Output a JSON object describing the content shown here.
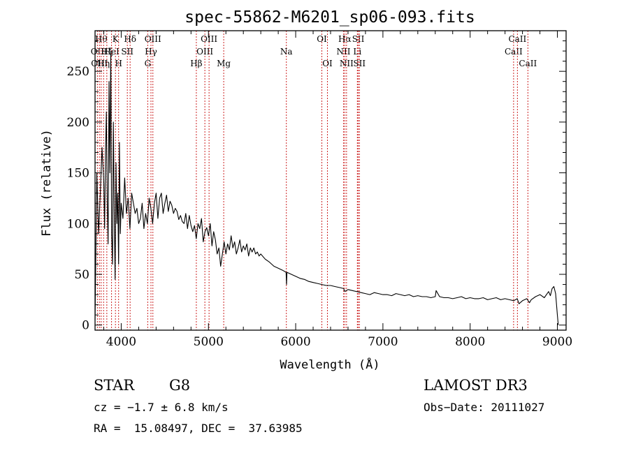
{
  "chart_data": {
    "type": "line",
    "title": "spec-55862-M6201_sp06-093.fits",
    "xlabel": "Wavelength (Å)",
    "ylabel": "Flux (relative)",
    "xlim": [
      3700,
      9100
    ],
    "ylim": [
      -5,
      290
    ],
    "x_ticks": [
      4000,
      5000,
      6000,
      7000,
      8000,
      9000
    ],
    "y_ticks": [
      0,
      50,
      100,
      150,
      200,
      250
    ],
    "colors": {
      "spectrum": "#000000",
      "line_markers": "#cc2222"
    },
    "series": [
      {
        "name": "spectrum",
        "x": [
          3700,
          3720,
          3740,
          3760,
          3780,
          3800,
          3810,
          3820,
          3830,
          3840,
          3850,
          3860,
          3870,
          3880,
          3890,
          3900,
          3910,
          3920,
          3930,
          3940,
          3950,
          3960,
          3970,
          3980,
          3990,
          4000,
          4020,
          4040,
          4060,
          4080,
          4100,
          4120,
          4140,
          4160,
          4180,
          4200,
          4220,
          4240,
          4260,
          4280,
          4300,
          4320,
          4340,
          4360,
          4380,
          4400,
          4420,
          4440,
          4460,
          4480,
          4500,
          4520,
          4540,
          4560,
          4580,
          4600,
          4620,
          4640,
          4660,
          4680,
          4700,
          4720,
          4740,
          4760,
          4780,
          4800,
          4820,
          4840,
          4860,
          4880,
          4900,
          4920,
          4940,
          4960,
          4980,
          5000,
          5020,
          5040,
          5060,
          5080,
          5100,
          5120,
          5140,
          5160,
          5180,
          5200,
          5220,
          5240,
          5260,
          5280,
          5300,
          5320,
          5340,
          5360,
          5380,
          5400,
          5420,
          5440,
          5460,
          5480,
          5500,
          5520,
          5540,
          5560,
          5580,
          5600,
          5650,
          5700,
          5750,
          5800,
          5850,
          5890,
          5895,
          5900,
          5950,
          6000,
          6050,
          6100,
          6150,
          6200,
          6250,
          6300,
          6350,
          6400,
          6450,
          6500,
          6550,
          6563,
          6600,
          6650,
          6700,
          6750,
          6800,
          6850,
          6900,
          6950,
          7000,
          7050,
          7100,
          7150,
          7200,
          7250,
          7300,
          7350,
          7400,
          7450,
          7500,
          7550,
          7600,
          7610,
          7650,
          7700,
          7750,
          7800,
          7850,
          7900,
          7950,
          8000,
          8050,
          8100,
          8150,
          8200,
          8250,
          8300,
          8350,
          8400,
          8450,
          8500,
          8540,
          8560,
          8600,
          8650,
          8680,
          8700,
          8750,
          8800,
          8850,
          8900,
          8920,
          8940,
          8960,
          8980,
          9000,
          9010
        ],
        "y": [
          5,
          150,
          90,
          130,
          175,
          140,
          95,
          170,
          210,
          120,
          80,
          240,
          150,
          270,
          90,
          60,
          200,
          110,
          45,
          160,
          100,
          130,
          60,
          180,
          90,
          120,
          105,
          145,
          110,
          125,
          95,
          130,
          120,
          110,
          115,
          100,
          105,
          120,
          95,
          110,
          100,
          125,
          115,
          100,
          120,
          130,
          105,
          125,
          130,
          110,
          120,
          128,
          112,
          122,
          118,
          110,
          115,
          112,
          104,
          108,
          102,
          100,
          110,
          95,
          108,
          98,
          92,
          98,
          85,
          100,
          95,
          105,
          82,
          92,
          96,
          88,
          100,
          78,
          92,
          84,
          70,
          76,
          58,
          70,
          82,
          70,
          80,
          74,
          88,
          76,
          82,
          70,
          76,
          84,
          72,
          78,
          74,
          80,
          68,
          76,
          72,
          76,
          70,
          72,
          68,
          70,
          65,
          62,
          58,
          56,
          54,
          52,
          40,
          52,
          50,
          48,
          46,
          45,
          43,
          42,
          41,
          40,
          39,
          39,
          38,
          37,
          36,
          33,
          35,
          34,
          33,
          32,
          31,
          30,
          32,
          31,
          30,
          30,
          29,
          31,
          30,
          29,
          30,
          28,
          29,
          28,
          28,
          27,
          28,
          34,
          28,
          27,
          27,
          26,
          27,
          28,
          26,
          27,
          26,
          26,
          27,
          25,
          26,
          27,
          25,
          26,
          25,
          24,
          26,
          21,
          24,
          26,
          22,
          25,
          28,
          30,
          27,
          33,
          29,
          36,
          38,
          31,
          10,
          0
        ]
      }
    ],
    "line_markers": [
      {
        "x": 3727,
        "label": "OII",
        "row": 1
      },
      {
        "x": 3750,
        "label": "OIII",
        "row": 2
      },
      {
        "x": 3770,
        "label": "Hθ",
        "row": 0
      },
      {
        "x": 3798,
        "label": "Hη",
        "row": 2
      },
      {
        "x": 3835,
        "label": "Hζ",
        "row": 1
      },
      {
        "x": 3889,
        "label": "HeI",
        "row": 1
      },
      {
        "x": 3934,
        "label": "K",
        "row": 0
      },
      {
        "x": 3970,
        "label": "H",
        "row": 2
      },
      {
        "x": 4070,
        "label": "SII",
        "row": 1
      },
      {
        "x": 4102,
        "label": "Hδ",
        "row": 0
      },
      {
        "x": 4304,
        "label": "G",
        "row": 2
      },
      {
        "x": 4341,
        "label": "Hγ",
        "row": 1
      },
      {
        "x": 4363,
        "label": "OIII",
        "row": 0
      },
      {
        "x": 4861,
        "label": "Hβ",
        "row": 2
      },
      {
        "x": 4959,
        "label": "OIII",
        "row": 1
      },
      {
        "x": 5007,
        "label": "OIII",
        "row": 0
      },
      {
        "x": 5175,
        "label": "Mg",
        "row": 2
      },
      {
        "x": 5893,
        "label": "Na",
        "row": 1
      },
      {
        "x": 6300,
        "label": "OI",
        "row": 0
      },
      {
        "x": 6364,
        "label": "OI",
        "row": 2
      },
      {
        "x": 6548,
        "label": "NII",
        "row": 1
      },
      {
        "x": 6563,
        "label": "Hα",
        "row": 0
      },
      {
        "x": 6583,
        "label": "NII",
        "row": 2
      },
      {
        "x": 6707,
        "label": "Li",
        "row": 1
      },
      {
        "x": 6717,
        "label": "SII",
        "row": 0
      },
      {
        "x": 6731,
        "label": "SII",
        "row": 2
      },
      {
        "x": 8498,
        "label": "CaII",
        "row": 1
      },
      {
        "x": 8542,
        "label": "CaII",
        "row": 0
      },
      {
        "x": 8662,
        "label": "CaII",
        "row": 2
      }
    ]
  },
  "info": {
    "object_class": "STAR",
    "subclass": "G8",
    "survey": "LAMOST DR3",
    "velocity": "cz = −1.7 ± 6.8 km/s",
    "obs_date": "Obs−Date: 20111027",
    "coordinates": "RA =  15.08497, DEC =  37.63985"
  }
}
